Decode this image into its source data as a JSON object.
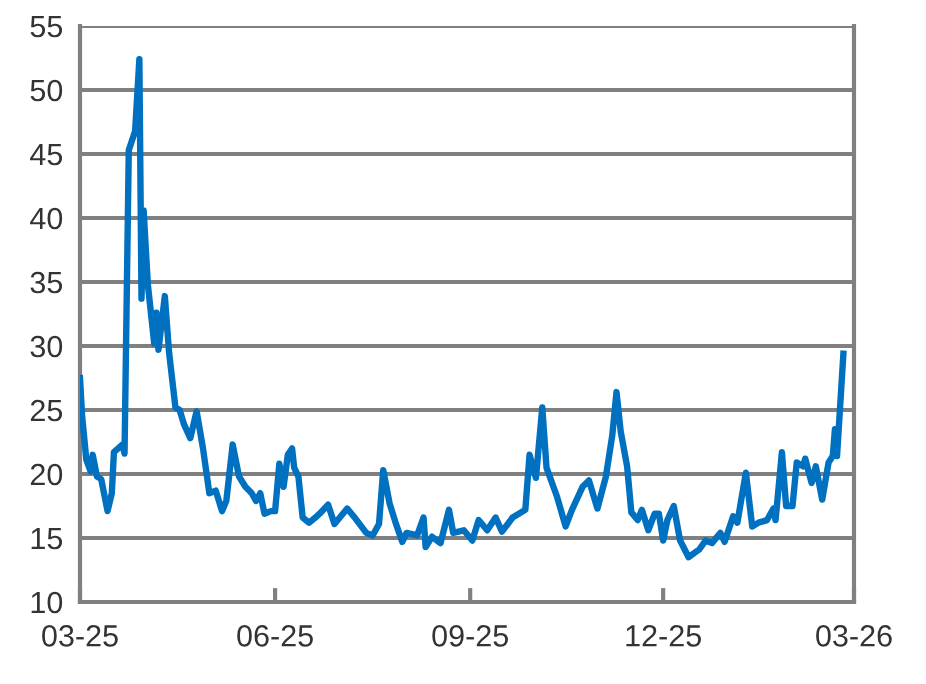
{
  "chart_data": {
    "type": "line",
    "grid": "y",
    "marker": "none",
    "line_style": "solid",
    "xlim": [
      "2025-03-01",
      "2026-03-01"
    ],
    "xticks": [
      {
        "value": "2025-03-01",
        "label": "03-25"
      },
      {
        "value": "2025-06-01",
        "label": "06-25"
      },
      {
        "value": "2025-09-01",
        "label": "09-25"
      },
      {
        "value": "2025-12-01",
        "label": "12-25"
      },
      {
        "value": "2026-03-01",
        "label": "03-26"
      }
    ],
    "ylim": [
      10,
      55
    ],
    "yticks": [
      10,
      15,
      20,
      25,
      30,
      35,
      40,
      45,
      50,
      55
    ],
    "series": [
      {
        "color": "#0070c0",
        "x": [
          "2025-03-01",
          "2025-03-02",
          "2025-03-04",
          "2025-03-06",
          "2025-03-07",
          "2025-03-09",
          "2025-03-11",
          "2025-03-14",
          "2025-03-16",
          "2025-03-17",
          "2025-03-21",
          "2025-03-22",
          "2025-03-24",
          "2025-03-27",
          "2025-03-29",
          "2025-03-30",
          "2025-03-31",
          "2025-04-02",
          "2025-04-05",
          "2025-04-06",
          "2025-04-07",
          "2025-04-10",
          "2025-04-12",
          "2025-04-15",
          "2025-04-17",
          "2025-04-19",
          "2025-04-22",
          "2025-04-25",
          "2025-04-28",
          "2025-05-01",
          "2025-05-04",
          "2025-05-07",
          "2025-05-09",
          "2025-05-12",
          "2025-05-15",
          "2025-05-18",
          "2025-05-21",
          "2025-05-23",
          "2025-05-25",
          "2025-05-27",
          "2025-05-30",
          "2025-06-01",
          "2025-06-03",
          "2025-06-05",
          "2025-06-07",
          "2025-06-09",
          "2025-06-10",
          "2025-06-12",
          "2025-06-14",
          "2025-06-17",
          "2025-06-20",
          "2025-06-22",
          "2025-06-26",
          "2025-06-29",
          "2025-07-05",
          "2025-07-09",
          "2025-07-14",
          "2025-07-17",
          "2025-07-20",
          "2025-07-22",
          "2025-07-25",
          "2025-07-28",
          "2025-07-31",
          "2025-08-02",
          "2025-08-07",
          "2025-08-10",
          "2025-08-11",
          "2025-08-14",
          "2025-08-18",
          "2025-08-22",
          "2025-08-24",
          "2025-08-29",
          "2025-09-02",
          "2025-09-05",
          "2025-09-09",
          "2025-09-13",
          "2025-09-16",
          "2025-09-21",
          "2025-09-27",
          "2025-09-29",
          "2025-10-02",
          "2025-10-05",
          "2025-10-07",
          "2025-10-12",
          "2025-10-16",
          "2025-10-19",
          "2025-10-24",
          "2025-10-27",
          "2025-10-31",
          "2025-11-04",
          "2025-11-07",
          "2025-11-09",
          "2025-11-11",
          "2025-11-14",
          "2025-11-16",
          "2025-11-19",
          "2025-11-21",
          "2025-11-24",
          "2025-11-27",
          "2025-11-29",
          "2025-12-01",
          "2025-12-03",
          "2025-12-06",
          "2025-12-09",
          "2025-12-13",
          "2025-12-18",
          "2025-12-21",
          "2025-12-24",
          "2025-12-28",
          "2025-12-30",
          "2026-01-03",
          "2026-01-05",
          "2026-01-09",
          "2026-01-12",
          "2026-01-15",
          "2026-01-19",
          "2026-01-22",
          "2026-01-23",
          "2026-01-26",
          "2026-01-28",
          "2026-01-31",
          "2026-02-02",
          "2026-02-05",
          "2026-02-06",
          "2026-02-09",
          "2026-02-11",
          "2026-02-14",
          "2026-02-17",
          "2026-02-19",
          "2026-02-20",
          "2026-02-21",
          "2026-02-24"
        ],
        "values": [
          27.5,
          24.5,
          21.1,
          20.2,
          21.5,
          19.8,
          19.6,
          17.1,
          18.5,
          21.7,
          22.3,
          21.6,
          45.3,
          46.8,
          52.4,
          33.7,
          40.6,
          34.8,
          30.2,
          32.6,
          29.7,
          33.9,
          29.5,
          25.2,
          25,
          23.9,
          22.8,
          24.9,
          22,
          18.5,
          18.7,
          17.1,
          17.9,
          22.3,
          19.8,
          19,
          18.5,
          17.9,
          18.5,
          16.9,
          17.1,
          17.1,
          20.8,
          19,
          21.5,
          22,
          20.5,
          19.8,
          16.6,
          16.2,
          16.6,
          16.9,
          17.6,
          16.1,
          17.3,
          16.5,
          15.4,
          15.2,
          16.1,
          20.3,
          17.7,
          16.1,
          14.7,
          15.4,
          15.2,
          16.6,
          14.3,
          15.1,
          14.6,
          17.2,
          15.4,
          15.6,
          14.8,
          16.4,
          15.6,
          16.6,
          15.5,
          16.6,
          17.2,
          21.5,
          19.7,
          25.2,
          20.5,
          18.2,
          15.9,
          17.2,
          19,
          19.5,
          17.3,
          19.8,
          23,
          26.4,
          23.3,
          20.6,
          17,
          16.4,
          17.2,
          15.6,
          16.9,
          16.9,
          14.8,
          16.4,
          17.5,
          14.8,
          13.5,
          14.1,
          14.8,
          14.6,
          15.4,
          14.7,
          16.7,
          16.2,
          20.1,
          15.9,
          16.2,
          16.4,
          17.3,
          16.4,
          21.7,
          17.5,
          17.5,
          20.9,
          20.6,
          21.2,
          19.3,
          20.6,
          18,
          20.9,
          21.4,
          23.5,
          21.4,
          29.4
        ]
      }
    ]
  }
}
